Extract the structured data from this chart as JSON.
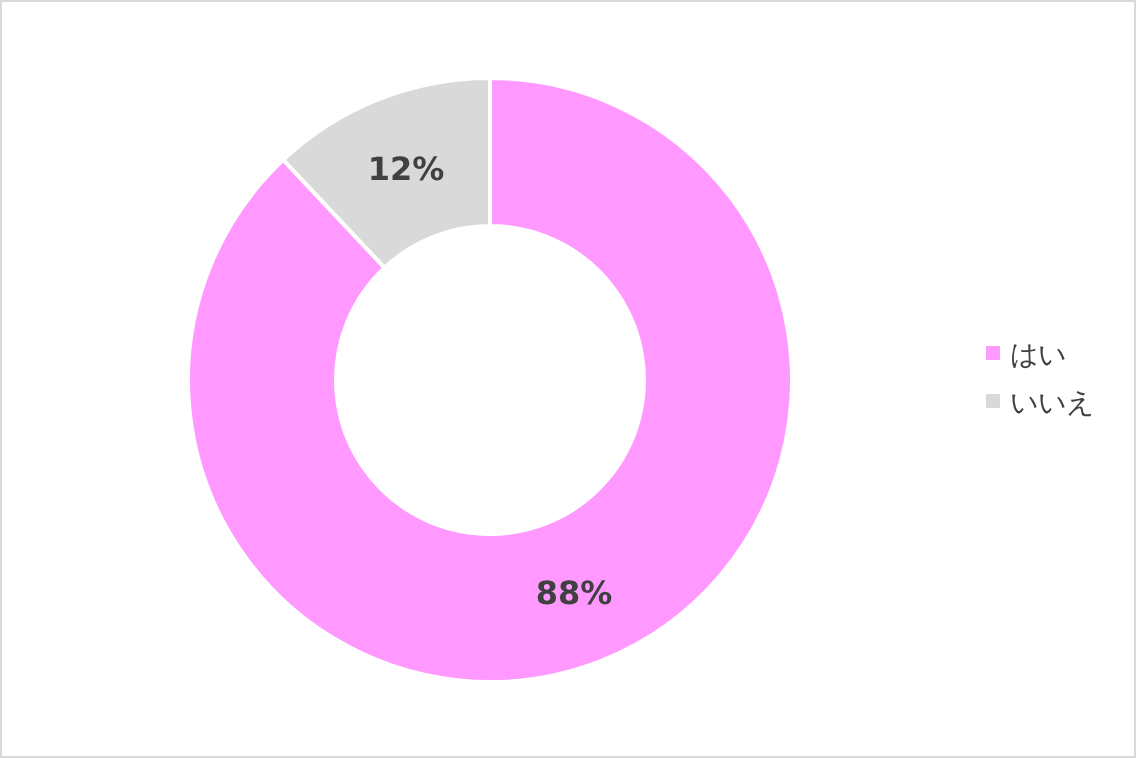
{
  "chart_data": {
    "type": "donut",
    "categories": [
      "はい",
      "いいえ"
    ],
    "values": [
      88,
      12
    ],
    "value_labels": [
      "88%",
      "12%"
    ],
    "colors": [
      "#ff99ff",
      "#d9d9d9"
    ],
    "legend": "right"
  }
}
